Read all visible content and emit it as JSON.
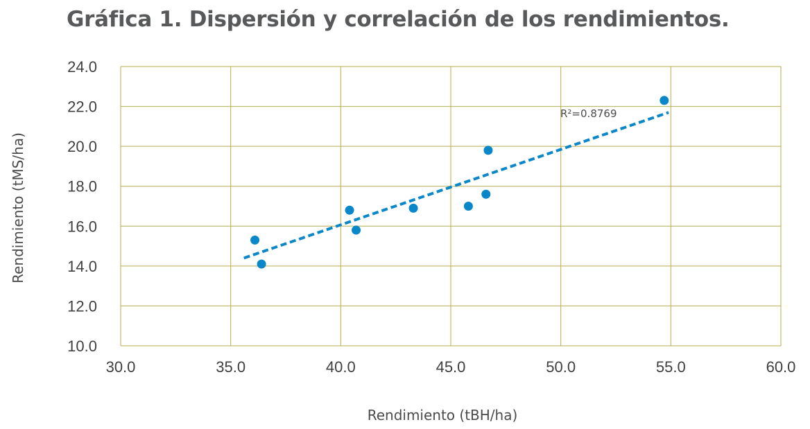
{
  "chart_data": {
    "type": "scatter",
    "title": "Gráfica 1. Dispersión y correlación de los rendimientos.",
    "xlabel": "Rendimiento (tBH/ha)",
    "ylabel": "Rendimiento (tMS/ha)",
    "xlim": [
      30,
      60
    ],
    "ylim": [
      10,
      24
    ],
    "x_ticks": [
      "30.0",
      "35.0",
      "40.0",
      "45.0",
      "50.0",
      "55.0",
      "60.0"
    ],
    "y_ticks": [
      "10.0",
      "12.0",
      "14.0",
      "16.0",
      "18.0",
      "20.0",
      "22.0",
      "24.0"
    ],
    "grid": true,
    "points": [
      {
        "x": 36.1,
        "y": 15.3
      },
      {
        "x": 36.4,
        "y": 14.1
      },
      {
        "x": 40.4,
        "y": 16.8
      },
      {
        "x": 40.7,
        "y": 15.8
      },
      {
        "x": 43.3,
        "y": 16.9
      },
      {
        "x": 45.8,
        "y": 17.0
      },
      {
        "x": 46.6,
        "y": 17.6
      },
      {
        "x": 46.7,
        "y": 19.8
      },
      {
        "x": 54.7,
        "y": 22.3
      }
    ],
    "trendline": {
      "x": [
        35.6,
        54.9
      ],
      "y": [
        14.4,
        21.7
      ],
      "style": "dashed"
    },
    "annotation": "R²=0.8769",
    "colors": {
      "points": "#0a87c9",
      "trendline": "#0a87c9",
      "grid": "#b8ab4e"
    }
  }
}
